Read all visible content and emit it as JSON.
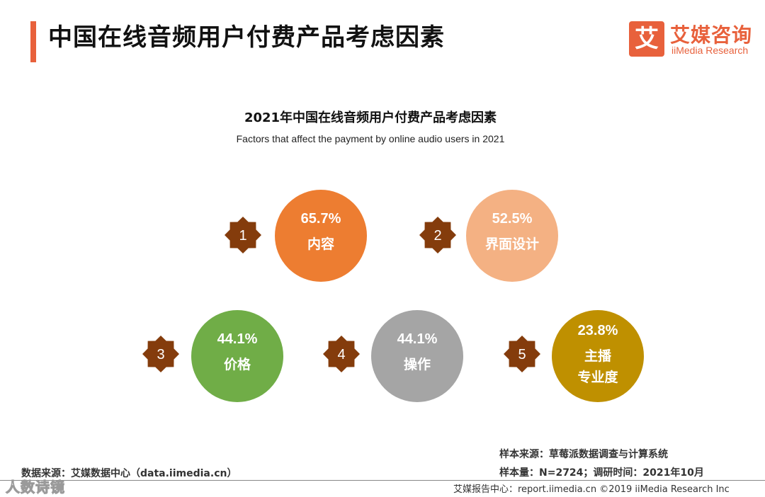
{
  "header": {
    "title": "中国在线音频用户付费产品考虑因素",
    "logo_mark": "艾",
    "logo_cn": "艾媒咨询",
    "logo_en": "iiMedia Research"
  },
  "chart_data": {
    "type": "bubble",
    "title": "2021年中国在线音频用户付费产品考虑因素",
    "subtitle": "Factors that affect the payment by online audio users in 2021",
    "unit": "%",
    "items": [
      {
        "rank": "1",
        "label": "内容",
        "value": 65.7,
        "value_label": "65.7%",
        "color": "#ed7d31"
      },
      {
        "rank": "2",
        "label": "界面设计",
        "value": 52.5,
        "value_label": "52.5%",
        "color": "#f4b183"
      },
      {
        "rank": "3",
        "label": "价格",
        "value": 44.1,
        "value_label": "44.1%",
        "color": "#70ad47"
      },
      {
        "rank": "4",
        "label": "操作",
        "value": 44.1,
        "value_label": "44.1%",
        "color": "#a5a5a5"
      },
      {
        "rank": "5",
        "label_lines": [
          "主播",
          "专业度"
        ],
        "value": 23.8,
        "value_label": "23.8%",
        "color": "#bf9000"
      }
    ],
    "badge_color": "#843c0c"
  },
  "footer": {
    "data_source": "数据来源：艾媒数据中心（data.iimedia.cn）",
    "sample_source": "样本来源：草莓派数据调查与计算系统",
    "sample_size": "样本量：N=2724；调研时间：2021年10月",
    "credit": "艾媒报告中心：report.iimedia.cn  ©2019  iiMedia Research  Inc",
    "watermark": "人数诗镜"
  }
}
